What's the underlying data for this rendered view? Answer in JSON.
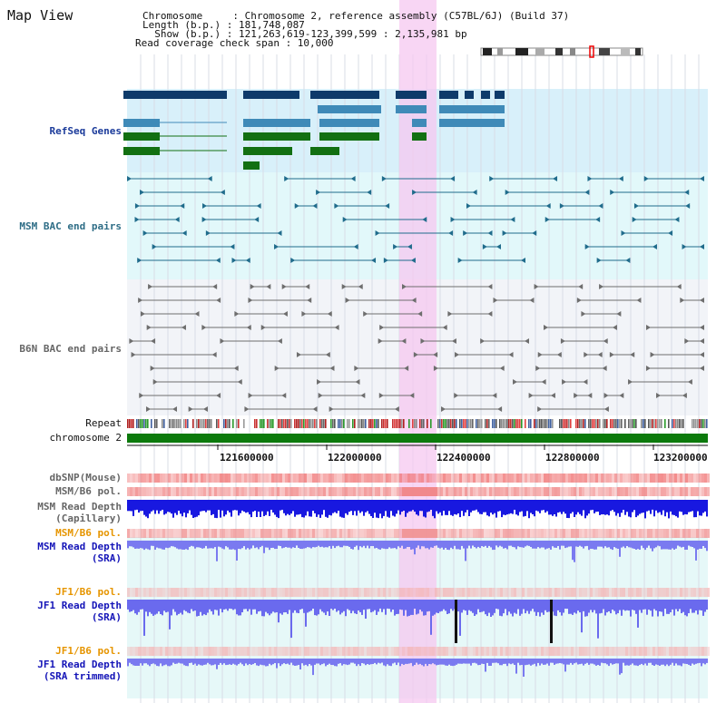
{
  "header": {
    "title": "Map View",
    "line1": "Chromosome     : Chromosome 2, reference assembly (C57BL/6J) (Build 37)",
    "line2": "Length (b.p.) : 181,748,087",
    "line3": "  Show (b.p.) : 121,263,619-123,399,599 : 2,135,981 bp",
    "line4": "Read coverage check span : 10,000"
  },
  "tracks": {
    "refseq": "RefSeq Genes",
    "msm_bac": "MSM BAC end pairs",
    "b6n_bac": "B6N BAC end pairs",
    "repeat": "Repeat",
    "chromosome": "chromosome 2",
    "dbsnp": "dbSNP(Mouse)",
    "msm_b6_pol_1": "MSM/B6 pol.",
    "msm_depth_cap_1": "MSM Read Depth",
    "msm_depth_cap_2": "(Capillary)",
    "msm_b6_pol_2": "MSM/B6 pol.",
    "msm_depth_sra_1": "MSM Read Depth",
    "msm_depth_sra_2": "(SRA)",
    "jf1_b6_pol_1": "JF1/B6 pol.",
    "jf1_depth_sra_1": "JF1 Read Depth",
    "jf1_depth_sra_2": "(SRA)",
    "jf1_b6_pol_2": "JF1/B6 pol.",
    "jf1_depth_trim_1": "JF1 Read Depth",
    "jf1_depth_trim_2": "(SRA trimmed)"
  },
  "axis": {
    "ticks": [
      "121600000",
      "122000000",
      "122400000",
      "122800000",
      "123200000"
    ]
  },
  "colors": {
    "highlight": "#f5c8f0",
    "refseq_bg": "#d8f0fa",
    "msm_bg": "#e2f8fa",
    "b6n_bg": "#f2f4f8",
    "gene_navy": "#0e3a6a",
    "gene_blue": "#3f8ab8",
    "gene_green": "#127012",
    "msm_pair": "#206c8c",
    "b6n_pair": "#6e6e6e",
    "chrom_green": "#0c7a0c",
    "snp_red": "#f07070",
    "depth_blue": "#1818e0",
    "depth_light": "#7a7af0"
  }
}
